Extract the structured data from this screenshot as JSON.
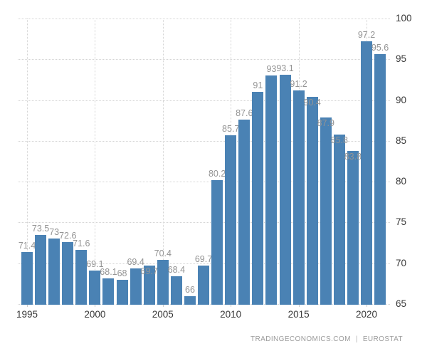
{
  "chart_data": {
    "type": "bar",
    "title": "",
    "xlabel": "",
    "ylabel": "",
    "years": [
      1995,
      1996,
      1997,
      1998,
      1999,
      2000,
      2001,
      2002,
      2003,
      2004,
      2005,
      2006,
      2007,
      2008,
      2009,
      2010,
      2011,
      2012,
      2013,
      2014,
      2015,
      2016,
      2017,
      2018,
      2019,
      2020,
      2021
    ],
    "values": [
      71.4,
      73.5,
      73,
      72.6,
      71.6,
      69.1,
      68.1,
      68,
      69.4,
      69.7,
      70.4,
      68.4,
      66,
      69.7,
      80.2,
      85.7,
      87.6,
      91,
      93,
      93.1,
      91.2,
      90.4,
      87.9,
      85.8,
      83.8,
      97.2,
      95.6
    ],
    "value_labels": [
      "71.4",
      "73.5",
      "73",
      "72.6",
      "71.6",
      "69.1",
      "68.1",
      "68",
      "69.4",
      "69.7",
      "70.4",
      "68.4",
      "66",
      "69.7",
      "80.2",
      "85.7",
      "87.6",
      "91",
      "93",
      "93.1",
      "91.2",
      "90.4",
      "87.9",
      "85.8",
      "83.8",
      "97.2",
      "95.6"
    ],
    "label_inside_years": [
      2004,
      2016,
      2017,
      2018,
      2019
    ],
    "ylim": [
      65,
      100
    ],
    "y_ticks": [
      65,
      70,
      75,
      80,
      85,
      90,
      95,
      100
    ],
    "x_ticks": [
      1995,
      2000,
      2005,
      2010,
      2015,
      2020
    ],
    "grid": true,
    "legend": "none",
    "bar_color": "#4A82B4"
  },
  "colors": {
    "bar": "#4A82B4",
    "grid": "#d4d4d4",
    "value_label": "#949494",
    "axis_label": "#383838",
    "footer_text": "#9b9b9b",
    "background": "#ffffff"
  },
  "footer": {
    "brand": "TRADINGECONOMICS.COM",
    "separator": "|",
    "source": "EUROSTAT"
  }
}
